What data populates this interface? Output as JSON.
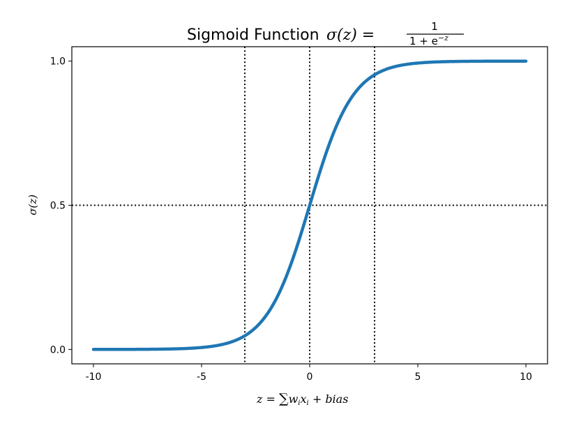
{
  "chart_data": {
    "type": "line",
    "title": {
      "text": "Sigmoid Function",
      "formula_lhs": "σ(z) =",
      "numerator": "1",
      "denominator_base": "1 + e",
      "denominator_exp": "−z"
    },
    "xlabel": {
      "lhs": "z = ",
      "sum": "∑",
      "w": "w",
      "i1": "i",
      "x": "x",
      "i2": "i",
      "rest": " + bias"
    },
    "ylabel": "σ(z)",
    "xlim": [
      -11,
      11
    ],
    "ylim": [
      -0.05,
      1.05
    ],
    "xticks": [
      -10,
      -5,
      0,
      5,
      10
    ],
    "xtick_labels": [
      "-10",
      "-5",
      "0",
      "5",
      "10"
    ],
    "yticks": [
      0,
      0.5,
      1
    ],
    "ytick_labels": [
      "0.0",
      "0.5",
      "1.0"
    ],
    "grid": false,
    "series": [
      {
        "function": "1/(1+exp(-z))",
        "x_range": [
          -10,
          10
        ],
        "color": "#1f77b4",
        "x": [
          -10,
          -9,
          -8,
          -7,
          -6,
          -5,
          -4,
          -3,
          -2,
          -1,
          0,
          1,
          2,
          3,
          4,
          5,
          6,
          7,
          8,
          9,
          10
        ],
        "y": [
          5e-05,
          0.00012,
          0.00034,
          0.00091,
          0.00247,
          0.00669,
          0.01799,
          0.04743,
          0.1192,
          0.26894,
          0.5,
          0.73106,
          0.8808,
          0.95257,
          0.98201,
          0.99331,
          0.99753,
          0.99909,
          0.99966,
          0.99988,
          0.99995
        ]
      }
    ],
    "reference_lines": {
      "vertical_x": [
        -3,
        0,
        3
      ],
      "horizontal_y": [
        0.5
      ],
      "style": "dotted",
      "color": "#000000"
    }
  }
}
